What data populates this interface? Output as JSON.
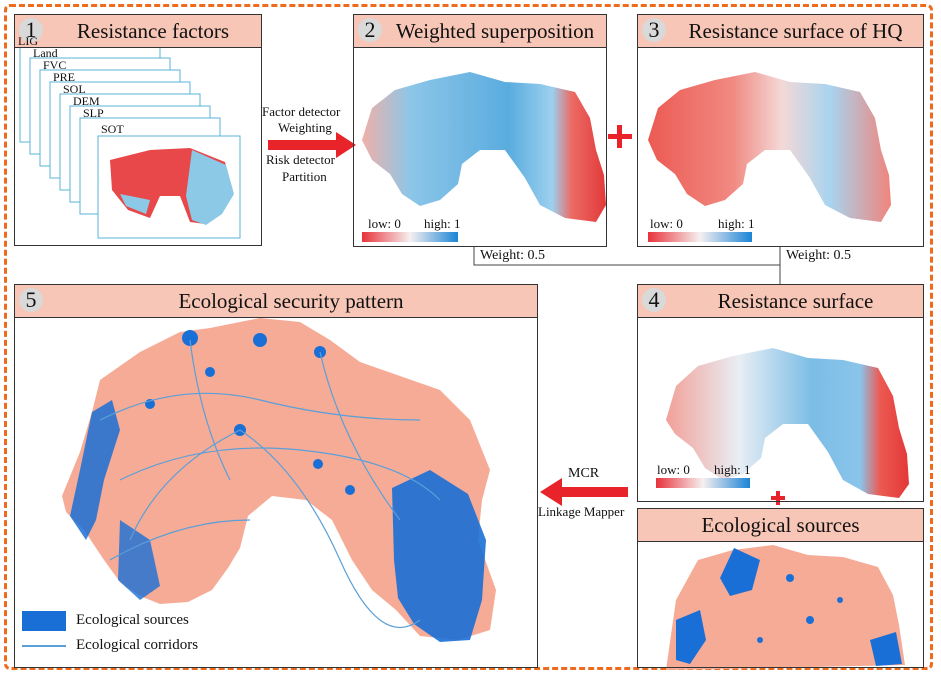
{
  "panels": {
    "p1": {
      "num": "1",
      "title": "Resistance factors",
      "stack": [
        "LIG",
        "Land",
        "FVC",
        "PRE",
        "SOL",
        "DEM",
        "SLP",
        "SOT"
      ]
    },
    "p2": {
      "num": "2",
      "title": "Weighted superposition",
      "low": "low: 0",
      "high": "high: 1"
    },
    "p3": {
      "num": "3",
      "title": "Resistance surface of HQ",
      "low": "low: 0",
      "high": "high: 1"
    },
    "p4": {
      "num": "4",
      "title": "Resistance surface",
      "low": "low: 0",
      "high": "high: 1"
    },
    "p5": {
      "num": "5",
      "title": "Ecological security pattern",
      "legend": {
        "sources": "Ecological sources",
        "corridors": "Ecological corridors"
      }
    },
    "p6": {
      "title": "Ecological sources"
    }
  },
  "arrows": {
    "a1": {
      "line1": "Factor detector",
      "line2": "Weighting",
      "line3": "Risk detector",
      "line4": "Partition"
    },
    "a2": {
      "line1": "MCR",
      "line2": "Linkage Mapper"
    }
  },
  "weights": {
    "left": "Weight: 0.5",
    "right": "Weight: 0.5"
  },
  "colors": {
    "accent": "#ee6a1c",
    "header": "#f7c6b6",
    "low": "#e8323a",
    "high": "#1b84d6",
    "source": "#1a6fd6",
    "pattern_bg": "#f6ab96",
    "arrow": "#e8232a"
  }
}
